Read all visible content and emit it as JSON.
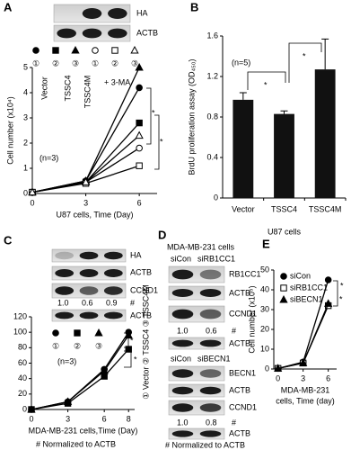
{
  "panels": [
    "A",
    "B",
    "C",
    "D",
    "E"
  ],
  "chart_data": [
    {
      "type": "line",
      "y_label": "Cell number (x10⁴)",
      "x_label": "U87 cells, Time (Day)",
      "x": [
        0,
        3,
        6
      ],
      "xlim": [
        0,
        7
      ],
      "xticks": [
        0,
        3,
        6
      ],
      "ylim": [
        0,
        5
      ],
      "yticks": [
        0,
        1,
        2,
        3,
        4,
        5
      ],
      "series": [
        {
          "name": "①",
          "color": "#000000",
          "marker": "circle",
          "filled": true,
          "values": [
            0.05,
            0.5,
            4.2
          ]
        },
        {
          "name": "②",
          "color": "#000000",
          "marker": "square",
          "filled": true,
          "values": [
            0.05,
            0.45,
            2.8
          ]
        },
        {
          "name": "③",
          "color": "#000000",
          "marker": "triangle",
          "filled": true,
          "values": [
            0.05,
            0.5,
            5.0
          ]
        },
        {
          "name": "①",
          "color": "#000000",
          "marker": "circle",
          "filled": false,
          "values": [
            0.05,
            0.45,
            1.8
          ]
        },
        {
          "name": "②",
          "color": "#000000",
          "marker": "square",
          "filled": false,
          "values": [
            0.05,
            0.4,
            1.1
          ]
        },
        {
          "name": "③",
          "color": "#000000",
          "marker": "triangle",
          "filled": false,
          "values": [
            0.05,
            0.45,
            2.3
          ]
        }
      ],
      "annotations": {
        "groups": [
          "Vector",
          "TSSC4",
          "TSSC4M"
        ],
        "treatment": "+ 3-MA",
        "n": "(n=3)",
        "stars": [
          "*",
          "*"
        ]
      }
    },
    {
      "type": "bar",
      "y_label": "BrdU proliferation assay (OD₄₅₀)",
      "x_label": "U87 cells",
      "categories": [
        "Vector",
        "TSSC4",
        "TSSC4M"
      ],
      "values": [
        0.97,
        0.83,
        1.27
      ],
      "errors": [
        0.07,
        0.03,
        0.3
      ],
      "color": "#111111",
      "ylim": [
        0,
        1.6
      ],
      "yticks": [
        0,
        0.4,
        0.8,
        1.2,
        1.6
      ],
      "annotations": {
        "n": "(n=5)",
        "stars": [
          "*",
          "*"
        ]
      }
    },
    {
      "type": "line",
      "x_label": "MDA-MB-231 cells,Time (Day)",
      "x": [
        0,
        3,
        6,
        8
      ],
      "xlim": [
        0,
        8.5
      ],
      "xticks": [
        0,
        3,
        6,
        8
      ],
      "ylim": [
        0,
        120
      ],
      "yticks": [
        0,
        20,
        40,
        60,
        80,
        100,
        120
      ],
      "series": [
        {
          "name": "①",
          "color": "#000000",
          "marker": "circle",
          "filled": true,
          "values": [
            0,
            10,
            52,
            100
          ]
        },
        {
          "name": "②",
          "color": "#000000",
          "marker": "square",
          "filled": true,
          "values": [
            0,
            8,
            43,
            78
          ]
        },
        {
          "name": "③",
          "color": "#000000",
          "marker": "triangle",
          "filled": true,
          "values": [
            0,
            10,
            50,
            96
          ]
        }
      ],
      "annotations": {
        "n": "(n=3)",
        "stars": [
          "*",
          "*"
        ]
      }
    },
    {
      "type": "line",
      "y_label": "Cell number (x10⁵)",
      "x_label": [
        "MDA-MB-231",
        "cells, Time (day)"
      ],
      "x": [
        0,
        3,
        6
      ],
      "xlim": [
        -0.5,
        7
      ],
      "xticks": [
        0,
        3,
        6
      ],
      "ylim": [
        0,
        50
      ],
      "yticks": [
        0,
        10,
        20,
        30,
        40,
        50
      ],
      "series": [
        {
          "name": "siCon",
          "color": "#000000",
          "marker": "circle",
          "filled": true,
          "values": [
            0.3,
            3.5,
            45
          ]
        },
        {
          "name": "siRB1CC1",
          "color": "#000000",
          "marker": "square",
          "filled": false,
          "values": [
            0.3,
            3,
            32
          ]
        },
        {
          "name": "siBECN1",
          "color": "#000000",
          "marker": "triangle",
          "filled": true,
          "values": [
            0.3,
            3,
            33
          ]
        }
      ],
      "annotations": {
        "stars": [
          "*",
          "*"
        ]
      }
    }
  ],
  "blots": {
    "A": {
      "rows": [
        "HA",
        "ACTB"
      ]
    },
    "C": {
      "rows": [
        "HA",
        "ACTB",
        "CCND1",
        "ACTB"
      ],
      "ratios": [
        "1.0",
        "0.6",
        "0.9"
      ],
      "mark": "#",
      "lanes": "① Vector ② TSSC4 ③ TSSC4M",
      "footnote": "# Normalized to ACTB"
    },
    "D": {
      "cell_line": "MDA-MB-231 cells",
      "top": {
        "lanes": [
          "siCon",
          "siRB1CC1"
        ],
        "rows": [
          "RB1CC1",
          "ACTB",
          "CCND1",
          "ACTB"
        ],
        "ratios": [
          "1.0",
          "0.6"
        ],
        "mark": "#"
      },
      "bottom": {
        "lanes": [
          "siCon",
          "siBECN1"
        ],
        "rows": [
          "BECN1",
          "ACTB",
          "CCND1",
          "ACTB"
        ],
        "ratios": [
          "1.0",
          "0.8"
        ],
        "mark": "#"
      },
      "footnote": "# Normalized to ACTB"
    }
  }
}
